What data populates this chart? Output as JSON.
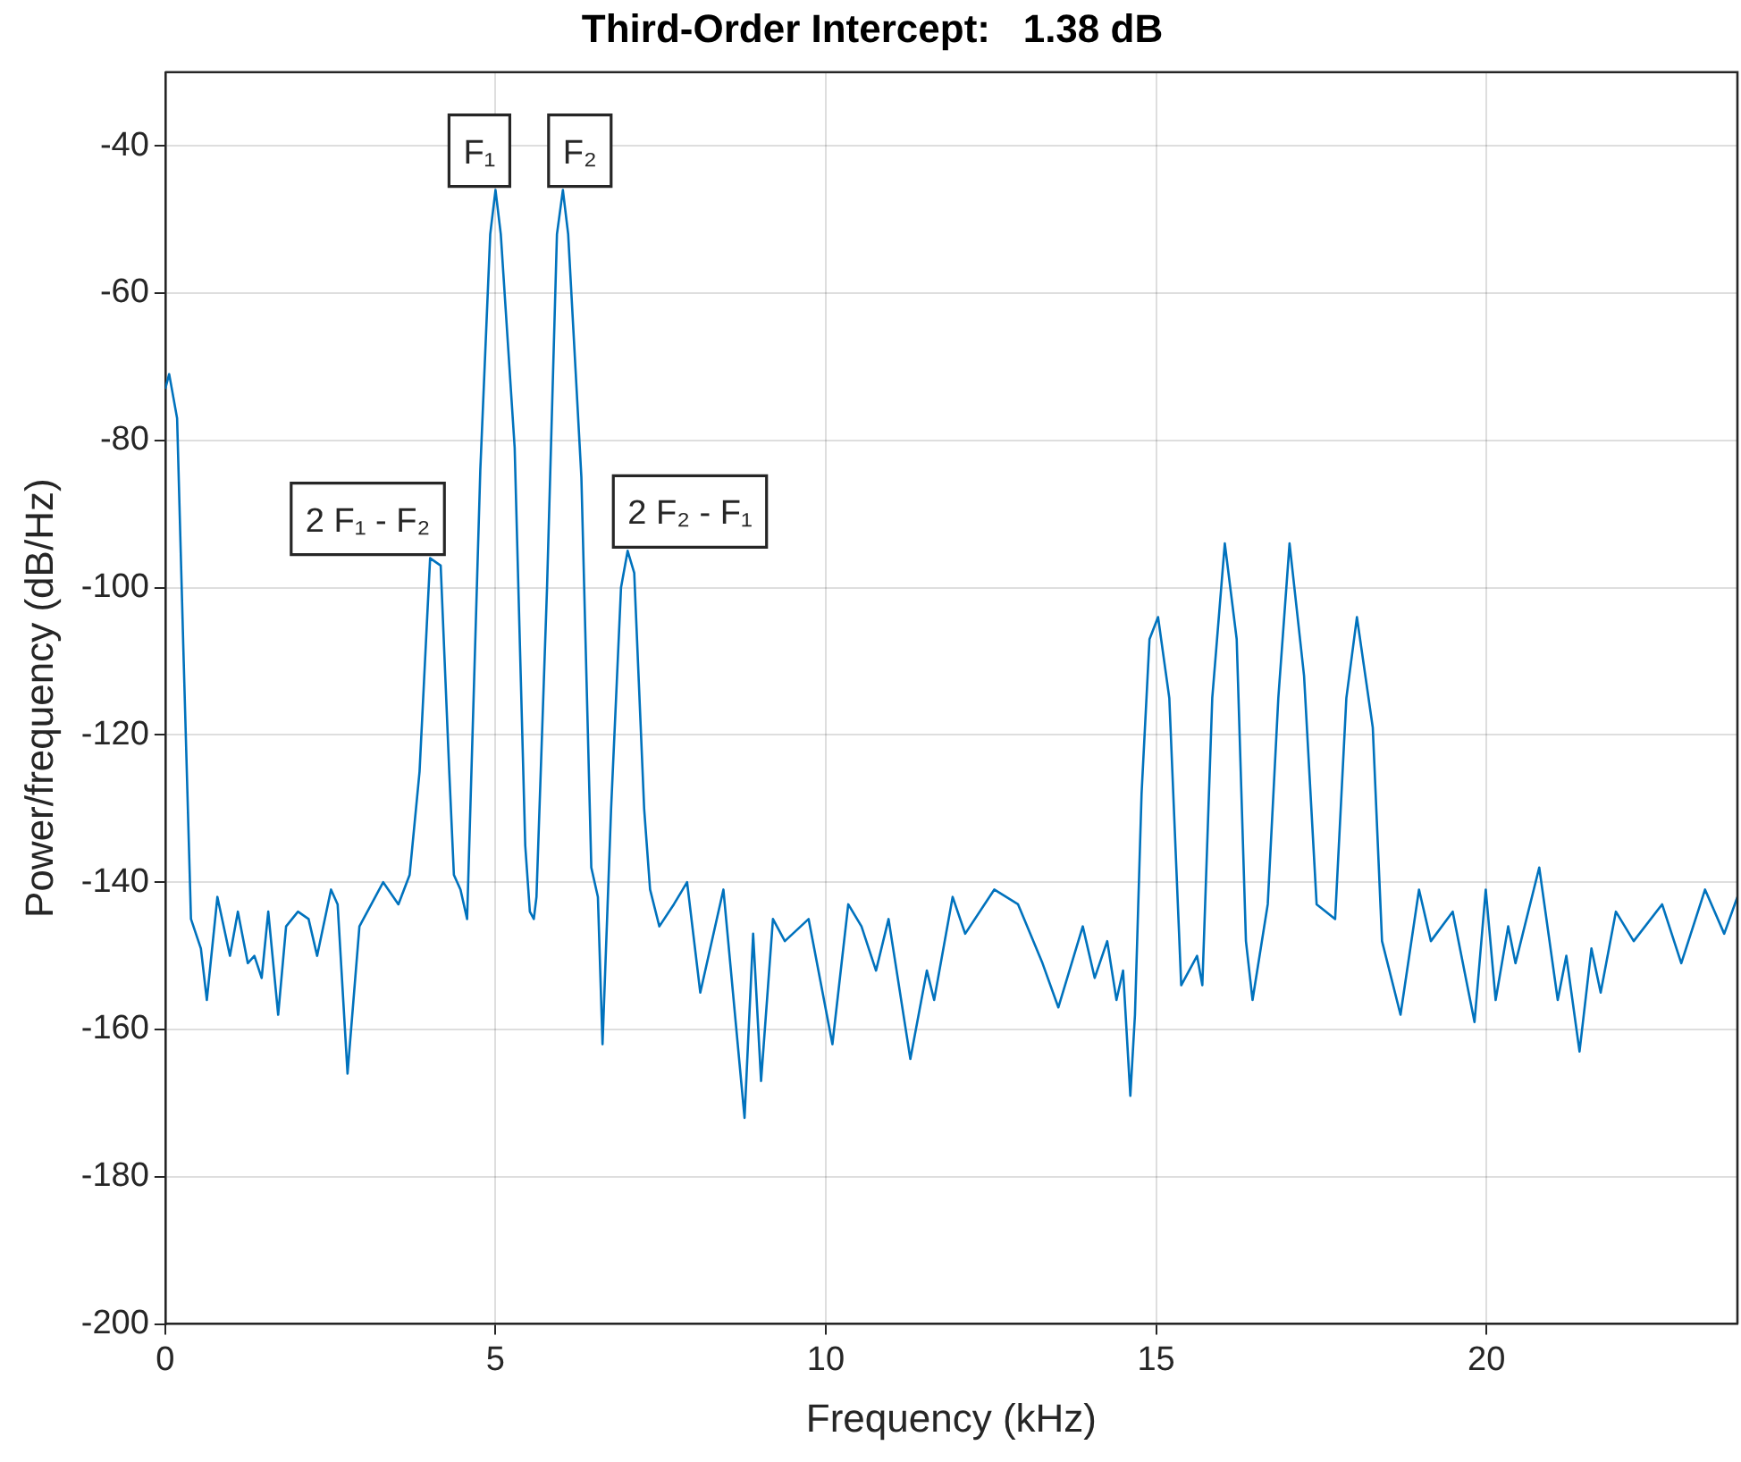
{
  "chart_data": {
    "type": "line",
    "title": "Third-Order Intercept:   1.38 dB",
    "xlabel": "Frequency (kHz)",
    "ylabel": "Power/frequency (dB/Hz)",
    "xlim": [
      0,
      23.8
    ],
    "xticks": [
      0,
      5,
      10,
      15,
      20
    ],
    "ylim": [
      -200,
      -30
    ],
    "yticks": [
      -200,
      -180,
      -160,
      -140,
      -120,
      -100,
      -80,
      -60,
      -40
    ],
    "grid": true,
    "legend": false,
    "marker": "none",
    "line_style": "solid",
    "x": [
      0,
      0.06,
      0.18,
      0.28,
      0.39,
      0.54,
      0.63,
      0.79,
      0.98,
      1.1,
      1.25,
      1.35,
      1.46,
      1.56,
      1.71,
      1.83,
      2.01,
      2.17,
      2.3,
      2.51,
      2.61,
      2.76,
      2.94,
      3.3,
      3.53,
      3.7,
      3.85,
      4.01,
      4.17,
      4.3,
      4.37,
      4.47,
      4.57,
      4.77,
      4.92,
      5.0,
      5.08,
      5.29,
      5.45,
      5.52,
      5.58,
      5.62,
      5.78,
      5.93,
      6.02,
      6.1,
      6.3,
      6.45,
      6.55,
      6.62,
      6.75,
      6.9,
      7.0,
      7.1,
      7.25,
      7.34,
      7.48,
      7.7,
      7.9,
      8.1,
      8.45,
      8.77,
      8.9,
      9.02,
      9.2,
      9.38,
      9.74,
      10.1,
      10.34,
      10.54,
      10.76,
      10.95,
      11.28,
      11.53,
      11.64,
      11.92,
      12.11,
      12.55,
      12.91,
      13.28,
      13.52,
      13.89,
      14.07,
      14.26,
      14.4,
      14.5,
      14.61,
      14.68,
      14.78,
      14.9,
      15.03,
      15.2,
      15.38,
      15.62,
      15.7,
      15.85,
      16.04,
      16.22,
      16.36,
      16.46,
      16.69,
      16.85,
      17.02,
      17.24,
      17.43,
      17.71,
      17.88,
      18.04,
      18.28,
      18.42,
      18.7,
      18.98,
      19.16,
      19.49,
      19.82,
      19.99,
      20.14,
      20.33,
      20.44,
      20.8,
      21.08,
      21.21,
      21.41,
      21.59,
      21.73,
      21.96,
      22.23,
      22.66,
      22.95,
      23.31,
      23.6,
      23.8
    ],
    "series": [
      {
        "color": "#0072bd",
        "values": [
          -73,
          -71,
          -77,
          -110,
          -145,
          -149,
          -156,
          -142,
          -150,
          -144,
          -151,
          -150,
          -153,
          -144,
          -158,
          -146,
          -144,
          -145,
          -150,
          -141,
          -143,
          -166,
          -146,
          -140,
          -143,
          -139,
          -125,
          -96,
          -97,
          -125,
          -139,
          -141,
          -145,
          -84,
          -52,
          -46,
          -52,
          -81,
          -135,
          -144,
          -145,
          -142,
          -100,
          -52,
          -46,
          -52,
          -85,
          -138,
          -142,
          -162,
          -130,
          -100,
          -95,
          -98,
          -130,
          -141,
          -146,
          -143,
          -140,
          -155,
          -141,
          -172,
          -147,
          -167,
          -145,
          -148,
          -145,
          -162,
          -143,
          -146,
          -152,
          -145,
          -164,
          -152,
          -156,
          -142,
          -147,
          -141,
          -143,
          -151,
          -157,
          -146,
          -153,
          -148,
          -156,
          -152,
          -169,
          -158,
          -128,
          -107,
          -104,
          -115,
          -154,
          -150,
          -154,
          -115,
          -94,
          -107,
          -148,
          -156,
          -143,
          -115,
          -94,
          -112,
          -143,
          -145,
          -115,
          -104,
          -119,
          -148,
          -158,
          -141,
          -148,
          -144,
          -159,
          -141,
          -156,
          -146,
          -151,
          -138,
          -156,
          -150,
          -163,
          -149,
          -155,
          -144,
          -148,
          -143,
          -151,
          -141,
          -147,
          -142
        ]
      }
    ],
    "annotations": [
      {
        "text": "F₁",
        "x": 5.0,
        "y": -46
      },
      {
        "text": "F₂",
        "x": 6.02,
        "y": -46
      },
      {
        "text": "2 F₁ - F₂",
        "x": 4.01,
        "y": -96
      },
      {
        "text": "2 F₂ - F₁",
        "x": 7.0,
        "y": -95
      }
    ]
  }
}
